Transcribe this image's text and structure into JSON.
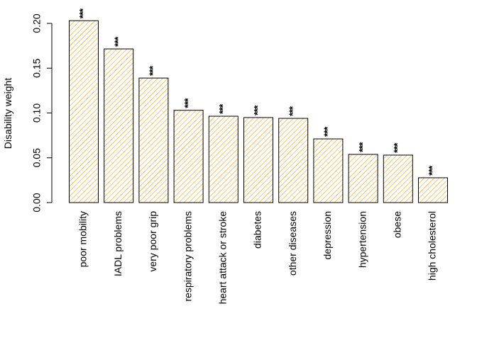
{
  "chart_data": {
    "type": "bar",
    "ylabel": "Disability weight",
    "categories": [
      "poor mobility",
      "IADL problems",
      "very poor grip",
      "respiratory problems",
      "heart attack or stroke",
      "diabetes",
      "other diseases",
      "depression",
      "hypertension",
      "obese",
      "high cholesterol"
    ],
    "values": [
      0.203,
      0.1715,
      0.139,
      0.103,
      0.0964,
      0.0949,
      0.094,
      0.0711,
      0.0538,
      0.053,
      0.0277
    ],
    "annotations": [
      "***",
      "***",
      "***",
      "***",
      "***",
      "***",
      "***",
      "***",
      "***",
      "***",
      "***"
    ],
    "color": "#f5a623",
    "annotation_color": "#b01010",
    "ylim": [
      0,
      0.2
    ],
    "yticks": [
      {
        "value": 0,
        "label": "0.00"
      },
      0.05,
      {
        "value": 0.1,
        "label": "0.10"
      },
      0.15,
      {
        "value": 0.2,
        "label": "0.20"
      }
    ]
  }
}
